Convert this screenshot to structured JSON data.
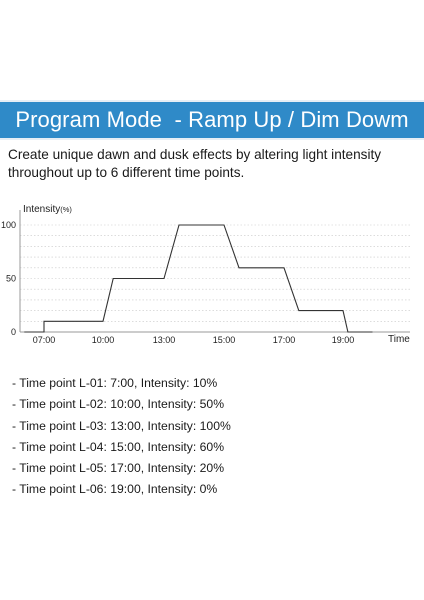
{
  "header": {
    "title": "Program Mode  - Ramp Up / Dim Dowm"
  },
  "description": "Create unique dawn and dusk effects by altering light intensity throughout up to 6 different time points.",
  "colors": {
    "banner": "#2f8ac8",
    "line": "#333333",
    "grid": "#c8c8c8"
  },
  "chart_data": {
    "type": "line",
    "ylabel_main": "Intensity",
    "ylabel_unit": "(%)",
    "xlabel": "Time",
    "x_ticks": [
      "07:00",
      "10:00",
      "13:00",
      "15:00",
      "17:00",
      "19:00"
    ],
    "y_ticks": [
      "0",
      "50",
      "100"
    ],
    "ylim": [
      0,
      100
    ],
    "grid": true,
    "series": [
      {
        "points": [
          {
            "x": "06:00",
            "y": 0
          },
          {
            "x": "07:00",
            "y": 0
          },
          {
            "x": "07:00",
            "y": 10
          },
          {
            "x": "10:00",
            "y": 10
          },
          {
            "x": "10:30",
            "y": 50
          },
          {
            "x": "13:00",
            "y": 50
          },
          {
            "x": "13:30",
            "y": 100
          },
          {
            "x": "15:00",
            "y": 100
          },
          {
            "x": "15:30",
            "y": 60
          },
          {
            "x": "17:00",
            "y": 60
          },
          {
            "x": "17:30",
            "y": 20
          },
          {
            "x": "19:00",
            "y": 20
          },
          {
            "x": "19:10",
            "y": 0
          },
          {
            "x": "20:00",
            "y": 0
          }
        ]
      }
    ]
  },
  "timepoints": [
    "- Time point L-01: 7:00, Intensity: 10%",
    "- Time point L-02: 10:00, Intensity: 50%",
    "- Time point L-03: 13:00, Intensity: 100%",
    "- Time point L-04: 15:00, Intensity: 60%",
    "- Time point L-05: 17:00, Intensity: 20%",
    "- Time point L-06: 19:00, Intensity: 0%"
  ]
}
